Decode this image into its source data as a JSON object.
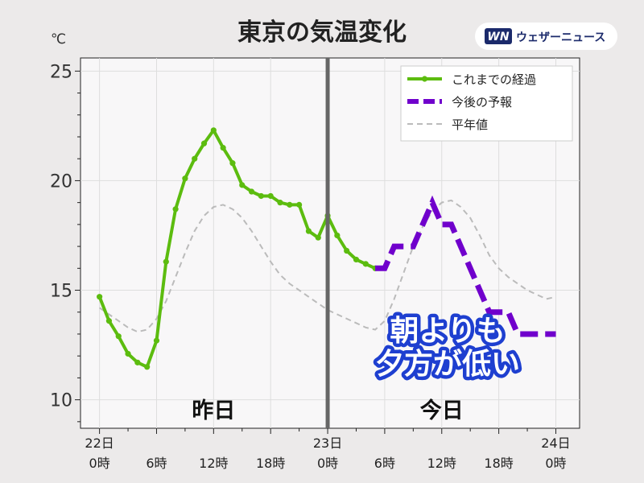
{
  "header": {
    "title": "東京の気温変化",
    "logo_mark": "WN",
    "logo_text": "ウェザーニュース",
    "colors": {
      "logo_mark_bg": "#1b2a6b",
      "logo_bg": "#ffffff"
    }
  },
  "chart_data": {
    "type": "line",
    "y_unit_label": "℃",
    "ylim": [
      8.7,
      25.6
    ],
    "xlim": [
      -2,
      50.5
    ],
    "yticks": [
      10,
      15,
      20,
      25
    ],
    "x_ticks": [
      {
        "x": 0,
        "line1": "22日",
        "line2": "0時"
      },
      {
        "x": 6,
        "line1": "",
        "line2": "6時"
      },
      {
        "x": 12,
        "line1": "",
        "line2": "12時"
      },
      {
        "x": 18,
        "line1": "",
        "line2": "18時"
      },
      {
        "x": 24,
        "line1": "23日",
        "line2": "0時"
      },
      {
        "x": 30,
        "line1": "",
        "line2": "6時"
      },
      {
        "x": 36,
        "line1": "",
        "line2": "12時"
      },
      {
        "x": 42,
        "line1": "",
        "line2": "18時"
      },
      {
        "x": 48,
        "line1": "24日",
        "line2": "0時"
      }
    ],
    "grid": true,
    "divider_x": 24,
    "day_labels": [
      {
        "text": "昨日",
        "x": 12
      },
      {
        "text": "今日",
        "x": 36
      }
    ],
    "legend_position": "top-right",
    "series": [
      {
        "name": "これまでの経過",
        "style": "solid-markers",
        "color": "#5cbc0f",
        "x": [
          0,
          1,
          2,
          3,
          4,
          5,
          6,
          7,
          8,
          9,
          10,
          11,
          12,
          13,
          14,
          15,
          16,
          17,
          18,
          19,
          20,
          21,
          22,
          23,
          24,
          25,
          26,
          27,
          28,
          29
        ],
        "values": [
          14.7,
          13.6,
          12.9,
          12.1,
          11.7,
          11.5,
          12.7,
          16.3,
          18.7,
          20.1,
          21.0,
          21.7,
          22.3,
          21.5,
          20.8,
          19.8,
          19.5,
          19.3,
          19.3,
          19.0,
          18.9,
          18.9,
          17.7,
          17.4,
          18.4,
          17.5,
          16.8,
          16.4,
          16.2,
          16.0
        ]
      },
      {
        "name": "今後の予報",
        "style": "dashed-thick",
        "color": "#7000cc",
        "x": [
          29,
          30,
          31,
          32,
          33,
          34,
          35,
          36,
          37,
          38,
          39,
          40,
          41,
          42,
          43,
          44,
          45,
          46,
          47,
          48
        ],
        "values": [
          16.0,
          16.0,
          17.0,
          17.0,
          17.0,
          18.0,
          19.0,
          18.0,
          18.0,
          17.0,
          16.0,
          15.0,
          14.0,
          14.0,
          14.0,
          13.0,
          13.0,
          13.0,
          13.0,
          13.0
        ]
      },
      {
        "name": "平年値",
        "style": "dashed-thin",
        "color": "#bbbbbb",
        "x": [
          0,
          1,
          2,
          3,
          4,
          5,
          6,
          7,
          8,
          9,
          10,
          11,
          12,
          13,
          14,
          15,
          16,
          17,
          18,
          19,
          20,
          21,
          22,
          23,
          24,
          25,
          26,
          27,
          28,
          29,
          30,
          31,
          32,
          33,
          34,
          35,
          36,
          37,
          38,
          39,
          40,
          41,
          42,
          43,
          44,
          45,
          46,
          47,
          48
        ],
        "values": [
          14.2,
          13.9,
          13.6,
          13.3,
          13.1,
          13.2,
          13.7,
          14.5,
          15.6,
          16.7,
          17.7,
          18.4,
          18.8,
          18.9,
          18.7,
          18.3,
          17.7,
          17.0,
          16.3,
          15.7,
          15.3,
          15.0,
          14.7,
          14.4,
          14.1,
          13.9,
          13.7,
          13.5,
          13.3,
          13.2,
          13.6,
          14.6,
          15.8,
          17.0,
          17.9,
          18.6,
          19.0,
          19.1,
          18.8,
          18.3,
          17.5,
          16.6,
          16.0,
          15.6,
          15.3,
          15.0,
          14.8,
          14.6,
          14.7
        ]
      }
    ],
    "annotation": [
      "朝よりも",
      "夕方が低い"
    ],
    "annotation_colors": {
      "fill": "#ffffff",
      "outline": "#1e3fd0"
    }
  }
}
